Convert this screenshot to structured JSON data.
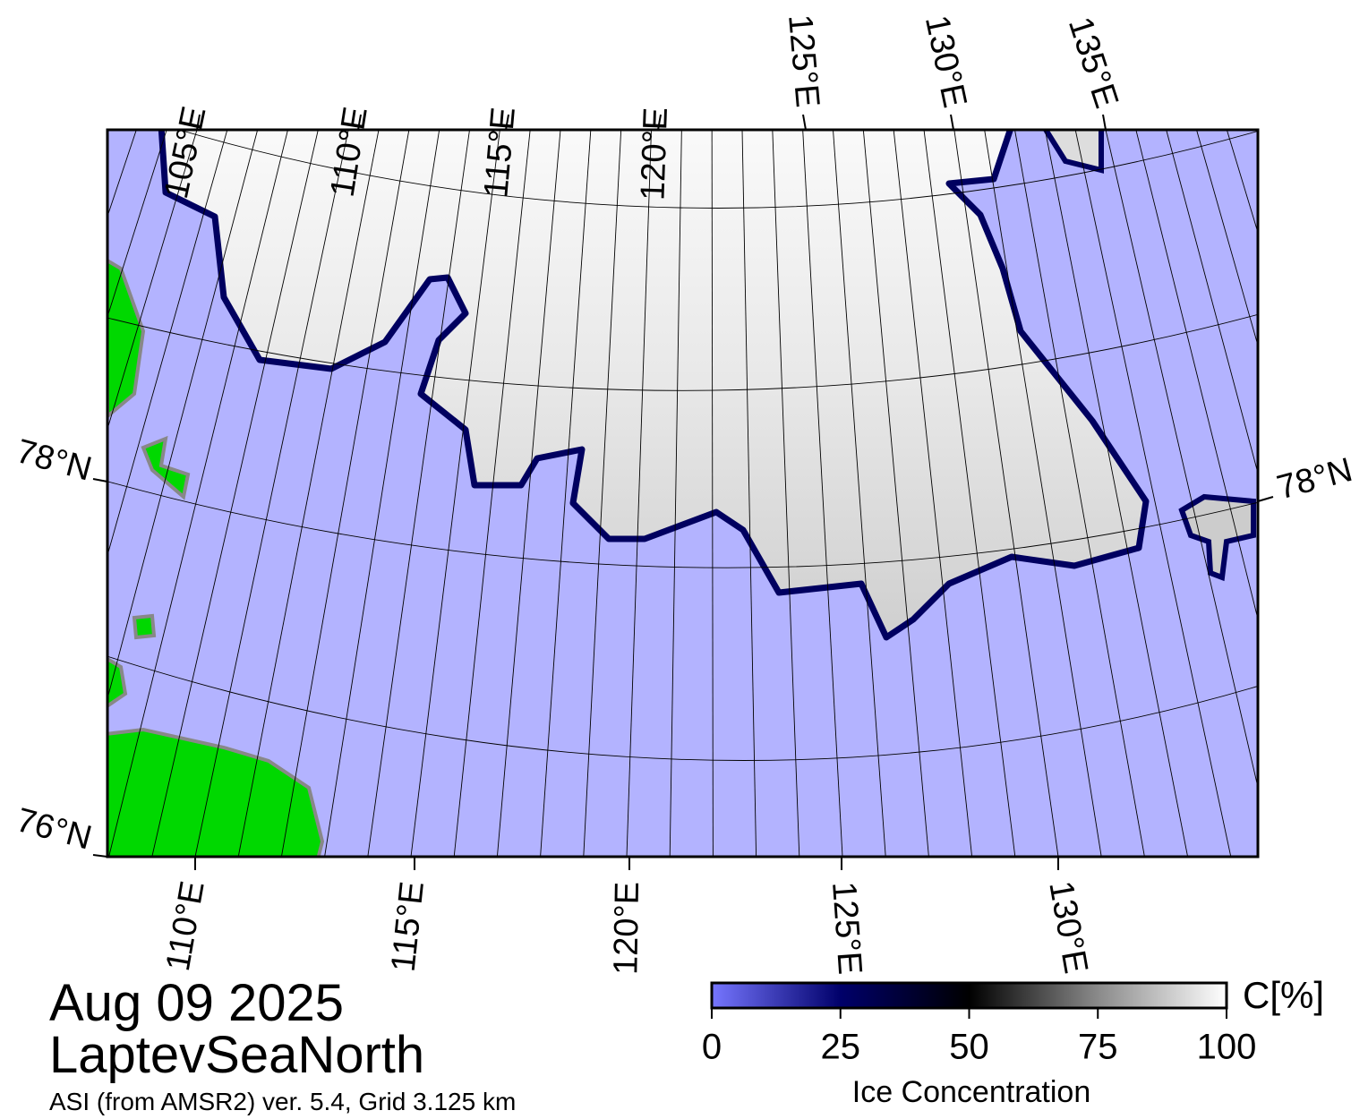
{
  "map": {
    "date": "Aug 09 2025",
    "region": "LaptevSeaNorth",
    "source": "ASI (from AMSR2) ver. 5.4,  Grid 3.125 km",
    "top_labels": [
      "105°E",
      "110°E",
      "115°E",
      "120°E",
      "125°E",
      "130°E",
      "135°E"
    ],
    "bottom_labels": [
      "110°E",
      "115°E",
      "120°E",
      "125°E",
      "130°E"
    ],
    "left_labels": [
      "78°N",
      "76°N"
    ],
    "right_labels": [
      "78°N"
    ]
  },
  "colorbar": {
    "unit": "C[%]",
    "title": "Ice Concentration",
    "lim": [
      0,
      100
    ],
    "ticks": [
      0,
      25,
      50,
      75,
      100
    ]
  }
}
